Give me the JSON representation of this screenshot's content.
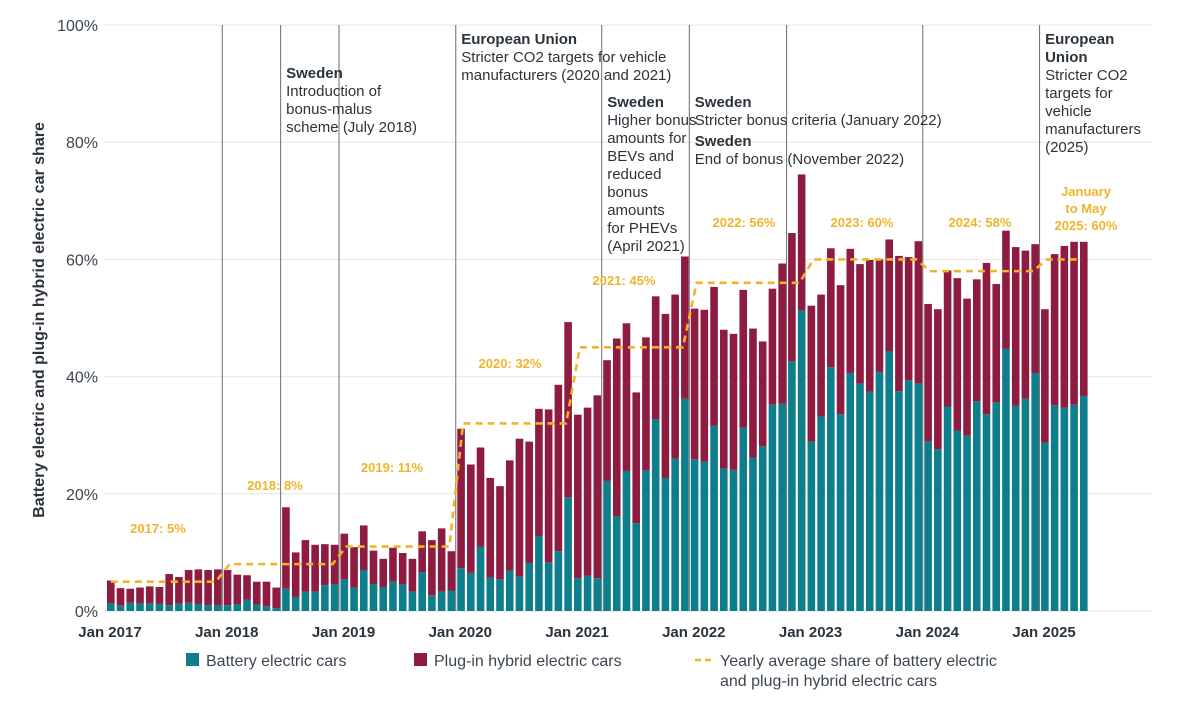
{
  "chart_data": {
    "type": "bar",
    "stacked": true,
    "ylabel": "Battery electric and plug-in hybrid electric car share",
    "ylim": [
      0,
      100
    ],
    "yticks": [
      "0%",
      "20%",
      "40%",
      "60%",
      "80%",
      "100%"
    ],
    "xticks": [
      "Jan 2017",
      "Jan 2018",
      "Jan 2019",
      "Jan 2020",
      "Jan 2021",
      "Jan 2022",
      "Jan 2023",
      "Jan 2024",
      "Jan 2025"
    ],
    "start_year": 2017,
    "grid": true,
    "legend_position": "bottom",
    "colors": {
      "bev": "#0e7d8c",
      "phev": "#8e1b40",
      "avg": "#f0b429"
    },
    "legend": [
      {
        "key": "bev",
        "lines": [
          "Battery electric cars"
        ]
      },
      {
        "key": "phev",
        "lines": [
          "Plug-in hybrid electric cars"
        ]
      },
      {
        "key": "avg",
        "lines": [
          "Yearly average share of battery electric",
          "and plug-in hybrid electric cars"
        ]
      }
    ],
    "series": [
      {
        "name": "Battery electric cars",
        "key": "bev",
        "values": [
          1.3,
          0.9,
          1.4,
          1.3,
          1.3,
          1.2,
          1.0,
          1.3,
          1.4,
          1.2,
          1.0,
          1.0,
          1.0,
          1.2,
          1.9,
          1.1,
          0.8,
          0.5,
          3.8,
          2.4,
          3.3,
          3.3,
          4.4,
          4.6,
          5.4,
          4.0,
          7.0,
          4.6,
          4.1,
          5.0,
          4.5,
          3.3,
          6.6,
          2.7,
          3.3,
          3.5,
          7.3,
          6.5,
          11.0,
          5.7,
          5.4,
          6.9,
          5.9,
          8.2,
          12.8,
          8.3,
          10.2,
          19.4,
          5.6,
          6.0,
          5.6,
          22.2,
          16.2,
          23.9,
          15.0,
          24.0,
          32.7,
          22.7,
          26.0,
          36.2,
          25.9,
          25.5,
          31.6,
          24.3,
          24.1,
          31.3,
          26.2,
          28.1,
          35.2,
          35.4,
          42.6,
          51.3,
          28.9,
          33.2,
          41.6,
          33.6,
          40.6,
          38.8,
          37.4,
          40.8,
          44.3,
          37.5,
          39.4,
          38.8,
          28.9,
          27.6,
          34.9,
          30.8,
          29.9,
          35.8,
          33.6,
          35.6,
          44.8,
          35.0,
          36.2,
          40.6,
          28.7,
          35.1,
          34.7,
          35.2,
          36.7
        ]
      },
      {
        "name": "Plug-in hybrid electric cars",
        "key": "phev",
        "values": [
          3.9,
          3.0,
          2.4,
          2.7,
          2.9,
          2.9,
          5.3,
          4.5,
          5.6,
          5.9,
          6.0,
          6.1,
          6.0,
          5.0,
          4.2,
          3.9,
          4.2,
          3.5,
          13.9,
          7.6,
          8.8,
          8.0,
          7.0,
          6.7,
          7.8,
          6.9,
          7.6,
          5.7,
          4.8,
          5.8,
          5.4,
          5.6,
          7.0,
          9.4,
          10.8,
          6.7,
          23.8,
          18.5,
          16.9,
          17.0,
          15.9,
          18.8,
          23.5,
          20.7,
          21.7,
          26.1,
          28.4,
          29.9,
          27.9,
          28.7,
          31.2,
          20.6,
          30.3,
          25.2,
          22.3,
          22.7,
          21.0,
          28.0,
          28.0,
          24.3,
          25.7,
          25.9,
          23.7,
          23.7,
          23.2,
          23.5,
          22.0,
          17.9,
          19.8,
          23.9,
          21.9,
          23.2,
          23.2,
          20.8,
          20.3,
          22.0,
          21.2,
          20.4,
          22.5,
          19.2,
          19.1,
          23.1,
          21.0,
          24.3,
          23.5,
          23.9,
          23.2,
          26.0,
          23.4,
          20.8,
          25.8,
          20.2,
          20.1,
          27.1,
          25.3,
          22.0,
          22.8,
          25.8,
          27.6,
          27.8,
          26.3
        ]
      },
      {
        "name": "Yearly average share of battery electric and plug-in hybrid electric cars",
        "key": "avg",
        "values": [
          5,
          8,
          11,
          32,
          45,
          56,
          60,
          58,
          60
        ]
      }
    ],
    "year_labels": [
      "2017: 5%",
      "2018: 8%",
      "2019: 11%",
      "2020: 32%",
      "2021: 45%",
      "2022: 56%",
      "2023: 60%",
      "2024: 58%",
      "January to May 2025: 60%"
    ],
    "annotations": [
      {
        "date": "Jan 2018",
        "head": "",
        "body": []
      },
      {
        "date": "Jul 2018",
        "head": "Sweden",
        "body": [
          "Introduction of",
          "bonus-malus",
          "scheme (July 2018)"
        ]
      },
      {
        "date": "Jan 2019",
        "head": "",
        "body": []
      },
      {
        "date": "Jan 2020",
        "head": "European Union",
        "body": [
          "Stricter CO2 targets for vehicle",
          "manufacturers (2020 and 2021)"
        ]
      },
      {
        "date": "Apr 2021",
        "head": "Sweden",
        "body": [
          "Higher bonus",
          "amounts for",
          "BEVs and",
          "reduced",
          "bonus",
          "amounts",
          "for PHEVs",
          "(April 2021)"
        ]
      },
      {
        "date": "Jan 2022",
        "head": "Sweden",
        "body": [
          "Stricter bonus criteria (January 2022)"
        ]
      },
      {
        "date": "Jan 2022",
        "head": "Sweden",
        "body": [
          "End of bonus (November 2022)"
        ]
      },
      {
        "date": "Nov 2022",
        "head": "",
        "body": []
      },
      {
        "date": "Jan 2024",
        "head": "",
        "body": []
      },
      {
        "date": "Jan 2025",
        "head": "European Union",
        "body": [
          "Stricter CO2",
          "targets for",
          "vehicle",
          "manufacturers",
          "(2025)"
        ]
      }
    ]
  }
}
